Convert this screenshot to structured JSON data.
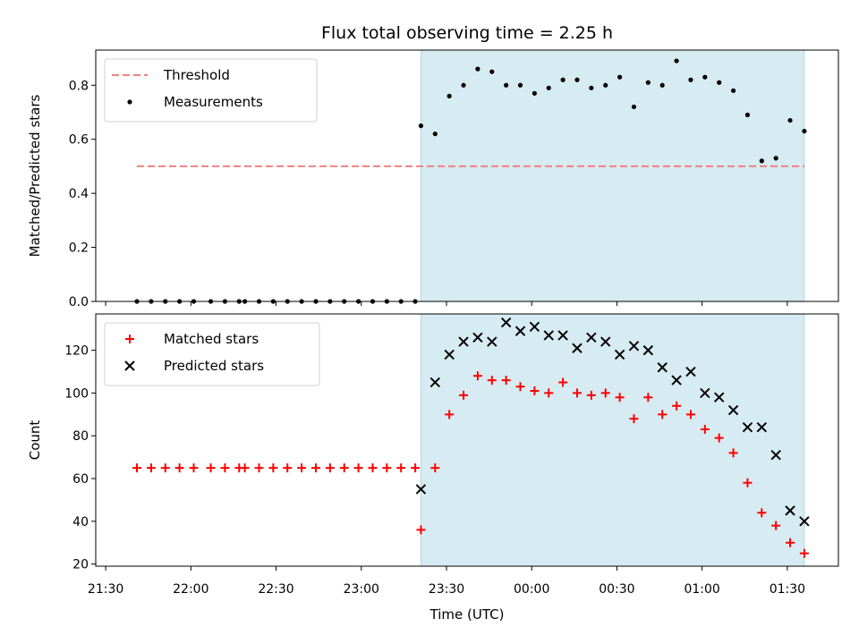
{
  "title": "Flux total observing time = 2.25 h",
  "colors": {
    "shade": "#add8e6",
    "threshold": "#f08080",
    "measurement": "#000000",
    "matched": "#ff0000",
    "predicted": "#000000"
  },
  "x_ticks": [
    {
      "label": "21:30",
      "value": 0
    },
    {
      "label": "22:00",
      "value": 30
    },
    {
      "label": "22:30",
      "value": 60
    },
    {
      "label": "23:00",
      "value": 90
    },
    {
      "label": "23:30",
      "value": 120
    },
    {
      "label": "00:00",
      "value": 150
    },
    {
      "label": "00:30",
      "value": 180
    },
    {
      "label": "01:00",
      "value": 210
    },
    {
      "label": "01:30",
      "value": 240
    }
  ],
  "xlabel": "Time (UTC)",
  "chart_data": [
    {
      "type": "scatter",
      "ylabel": "Matched/Predicted stars",
      "ylim": [
        0,
        0.93
      ],
      "y_ticks": [
        {
          "label": "0.0",
          "value": 0
        },
        {
          "label": "0.2",
          "value": 0.2
        },
        {
          "label": "0.4",
          "value": 0.4
        },
        {
          "label": "0.6",
          "value": 0.6
        },
        {
          "label": "0.8",
          "value": 0.8
        }
      ],
      "shade_x": [
        111,
        246
      ],
      "threshold": {
        "name": "Threshold",
        "value": 0.5,
        "x_range": [
          11,
          246
        ]
      },
      "legend_position": "upper-left",
      "series": [
        {
          "name": "Measurements",
          "x": [
            11,
            16,
            21,
            26,
            31,
            37,
            42,
            47,
            49,
            54,
            59,
            64,
            69,
            74,
            79,
            84,
            89,
            94,
            99,
            104,
            109,
            111,
            116,
            121,
            126,
            131,
            136,
            141,
            146,
            151,
            156,
            161,
            166,
            171,
            176,
            181,
            186,
            191,
            196,
            201,
            206,
            211,
            216,
            221,
            226,
            231,
            236,
            241,
            246
          ],
          "y": [
            0,
            0,
            0,
            0,
            0,
            0,
            0,
            0,
            0,
            0,
            0,
            0,
            0,
            0,
            0,
            0,
            0,
            0,
            0,
            0,
            0,
            0.65,
            0.62,
            0.76,
            0.8,
            0.86,
            0.85,
            0.8,
            0.8,
            0.77,
            0.79,
            0.82,
            0.82,
            0.79,
            0.8,
            0.83,
            0.72,
            0.81,
            0.8,
            0.89,
            0.82,
            0.83,
            0.81,
            0.78,
            0.69,
            0.52,
            0.53,
            0.67,
            0.63
          ]
        }
      ]
    },
    {
      "type": "scatter",
      "ylabel": "Count",
      "ylim": [
        19,
        137
      ],
      "y_ticks": [
        {
          "label": "20",
          "value": 20
        },
        {
          "label": "40",
          "value": 40
        },
        {
          "label": "60",
          "value": 60
        },
        {
          "label": "80",
          "value": 80
        },
        {
          "label": "100",
          "value": 100
        },
        {
          "label": "120",
          "value": 120
        }
      ],
      "shade_x": [
        111,
        246
      ],
      "legend_position": "upper-left",
      "series": [
        {
          "name": "Matched stars",
          "marker": "plus",
          "x": [
            11,
            16,
            21,
            26,
            31,
            37,
            42,
            47,
            49,
            54,
            59,
            64,
            69,
            74,
            79,
            84,
            89,
            94,
            99,
            104,
            109,
            111,
            116,
            121,
            126,
            131,
            136,
            141,
            146,
            151,
            156,
            161,
            166,
            171,
            176,
            181,
            186,
            191,
            196,
            201,
            206,
            211,
            216,
            221,
            226,
            231,
            236,
            241,
            246
          ],
          "y": [
            65,
            65,
            65,
            65,
            65,
            65,
            65,
            65,
            65,
            65,
            65,
            65,
            65,
            65,
            65,
            65,
            65,
            65,
            65,
            65,
            65,
            36,
            65,
            90,
            99,
            108,
            106,
            106,
            103,
            101,
            100,
            105,
            100,
            99,
            100,
            98,
            88,
            98,
            90,
            94,
            90,
            83,
            79,
            72,
            58,
            44,
            38,
            30,
            25
          ]
        },
        {
          "name": "Predicted stars",
          "marker": "cross",
          "x": [
            111,
            116,
            121,
            126,
            131,
            136,
            141,
            146,
            151,
            156,
            161,
            166,
            171,
            176,
            181,
            186,
            191,
            196,
            201,
            206,
            211,
            216,
            221,
            226,
            231,
            236,
            241,
            246
          ],
          "y": [
            55,
            105,
            118,
            124,
            126,
            124,
            133,
            129,
            131,
            127,
            127,
            121,
            126,
            124,
            118,
            122,
            120,
            112,
            106,
            110,
            100,
            98,
            92,
            84,
            84,
            71,
            45,
            40
          ]
        }
      ]
    }
  ]
}
